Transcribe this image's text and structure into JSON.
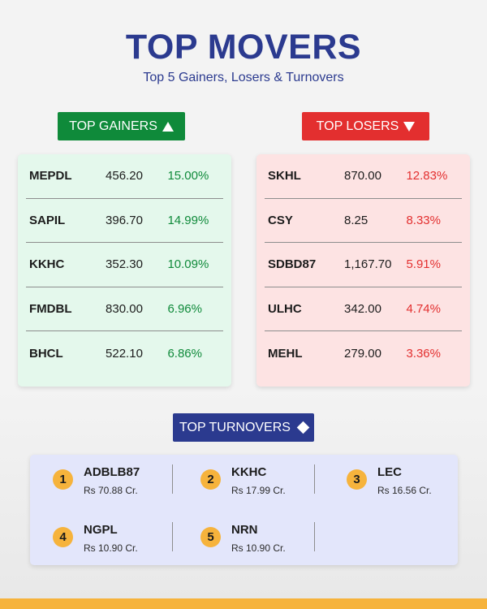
{
  "header": {
    "title": "TOP MOVERS",
    "subtitle": "Top 5 Gainers, Losers & Turnovers"
  },
  "gainers": {
    "label": "TOP GAINERS",
    "icon": "triangle-up-icon",
    "color": "#0f8a3a",
    "rows": [
      {
        "symbol": "MEPDL",
        "price": "456.20",
        "change": "15.00%"
      },
      {
        "symbol": "SAPIL",
        "price": "396.70",
        "change": "14.99%"
      },
      {
        "symbol": "KKHC",
        "price": "352.30",
        "change": "10.09%"
      },
      {
        "symbol": "FMDBL",
        "price": "830.00",
        "change": "6.96%"
      },
      {
        "symbol": "BHCL",
        "price": "522.10",
        "change": "6.86%"
      }
    ]
  },
  "losers": {
    "label": "TOP LOSERS",
    "icon": "triangle-down-icon",
    "color": "#e32f2f",
    "rows": [
      {
        "symbol": "SKHL",
        "price": "870.00",
        "change": "12.83%"
      },
      {
        "symbol": "CSY",
        "price": "8.25",
        "change": "8.33%"
      },
      {
        "symbol": "SDBD87",
        "price": "1,167.70",
        "change": "5.91%"
      },
      {
        "symbol": "ULHC",
        "price": "342.00",
        "change": "4.74%"
      },
      {
        "symbol": "MEHL",
        "price": "279.00",
        "change": "3.36%"
      }
    ]
  },
  "turnovers": {
    "label": "TOP TURNOVERS",
    "icon": "diamond-icon",
    "color": "#2b3a8f",
    "items": [
      {
        "rank": "1",
        "symbol": "ADBLB87",
        "value": "Rs 70.88 Cr."
      },
      {
        "rank": "2",
        "symbol": "KKHC",
        "value": "Rs 17.99 Cr."
      },
      {
        "rank": "3",
        "symbol": "LEC",
        "value": "Rs 16.56 Cr."
      },
      {
        "rank": "4",
        "symbol": "NGPL",
        "value": "Rs 10.90 Cr."
      },
      {
        "rank": "5",
        "symbol": "NRN",
        "value": "Rs 10.90 Cr."
      }
    ]
  }
}
